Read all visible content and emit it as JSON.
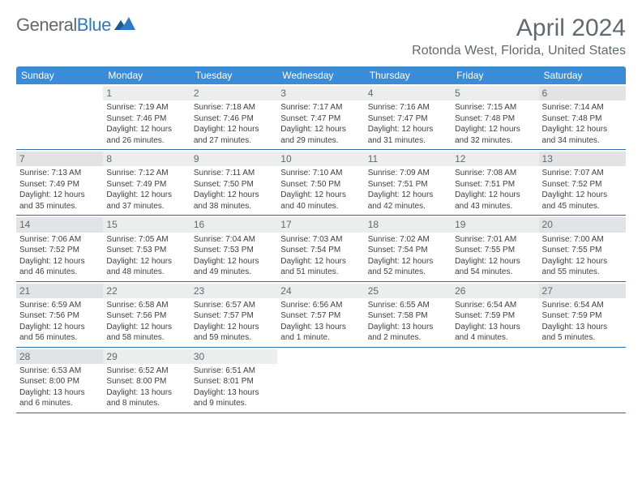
{
  "logo": {
    "word1": "General",
    "word2": "Blue"
  },
  "title": "April 2024",
  "location": "Rotonda West, Florida, United States",
  "colors": {
    "header_bg": "#3a8bd8",
    "header_text": "#ffffff",
    "divider": "#2f6fa8",
    "daynum_bg": "#eceded",
    "daynum_bg_alt": "#e2e3e4",
    "body_text": "#404040",
    "title_text": "#5f6a72",
    "logo_blue": "#2f7ac4"
  },
  "weekdays": [
    "Sunday",
    "Monday",
    "Tuesday",
    "Wednesday",
    "Thursday",
    "Friday",
    "Saturday"
  ],
  "weeks": [
    [
      null,
      {
        "n": "1",
        "sr": "Sunrise: 7:19 AM",
        "ss": "Sunset: 7:46 PM",
        "dl": "Daylight: 12 hours and 26 minutes."
      },
      {
        "n": "2",
        "sr": "Sunrise: 7:18 AM",
        "ss": "Sunset: 7:46 PM",
        "dl": "Daylight: 12 hours and 27 minutes."
      },
      {
        "n": "3",
        "sr": "Sunrise: 7:17 AM",
        "ss": "Sunset: 7:47 PM",
        "dl": "Daylight: 12 hours and 29 minutes."
      },
      {
        "n": "4",
        "sr": "Sunrise: 7:16 AM",
        "ss": "Sunset: 7:47 PM",
        "dl": "Daylight: 12 hours and 31 minutes."
      },
      {
        "n": "5",
        "sr": "Sunrise: 7:15 AM",
        "ss": "Sunset: 7:48 PM",
        "dl": "Daylight: 12 hours and 32 minutes."
      },
      {
        "n": "6",
        "sr": "Sunrise: 7:14 AM",
        "ss": "Sunset: 7:48 PM",
        "dl": "Daylight: 12 hours and 34 minutes."
      }
    ],
    [
      {
        "n": "7",
        "sr": "Sunrise: 7:13 AM",
        "ss": "Sunset: 7:49 PM",
        "dl": "Daylight: 12 hours and 35 minutes."
      },
      {
        "n": "8",
        "sr": "Sunrise: 7:12 AM",
        "ss": "Sunset: 7:49 PM",
        "dl": "Daylight: 12 hours and 37 minutes."
      },
      {
        "n": "9",
        "sr": "Sunrise: 7:11 AM",
        "ss": "Sunset: 7:50 PM",
        "dl": "Daylight: 12 hours and 38 minutes."
      },
      {
        "n": "10",
        "sr": "Sunrise: 7:10 AM",
        "ss": "Sunset: 7:50 PM",
        "dl": "Daylight: 12 hours and 40 minutes."
      },
      {
        "n": "11",
        "sr": "Sunrise: 7:09 AM",
        "ss": "Sunset: 7:51 PM",
        "dl": "Daylight: 12 hours and 42 minutes."
      },
      {
        "n": "12",
        "sr": "Sunrise: 7:08 AM",
        "ss": "Sunset: 7:51 PM",
        "dl": "Daylight: 12 hours and 43 minutes."
      },
      {
        "n": "13",
        "sr": "Sunrise: 7:07 AM",
        "ss": "Sunset: 7:52 PM",
        "dl": "Daylight: 12 hours and 45 minutes."
      }
    ],
    [
      {
        "n": "14",
        "sr": "Sunrise: 7:06 AM",
        "ss": "Sunset: 7:52 PM",
        "dl": "Daylight: 12 hours and 46 minutes."
      },
      {
        "n": "15",
        "sr": "Sunrise: 7:05 AM",
        "ss": "Sunset: 7:53 PM",
        "dl": "Daylight: 12 hours and 48 minutes."
      },
      {
        "n": "16",
        "sr": "Sunrise: 7:04 AM",
        "ss": "Sunset: 7:53 PM",
        "dl": "Daylight: 12 hours and 49 minutes."
      },
      {
        "n": "17",
        "sr": "Sunrise: 7:03 AM",
        "ss": "Sunset: 7:54 PM",
        "dl": "Daylight: 12 hours and 51 minutes."
      },
      {
        "n": "18",
        "sr": "Sunrise: 7:02 AM",
        "ss": "Sunset: 7:54 PM",
        "dl": "Daylight: 12 hours and 52 minutes."
      },
      {
        "n": "19",
        "sr": "Sunrise: 7:01 AM",
        "ss": "Sunset: 7:55 PM",
        "dl": "Daylight: 12 hours and 54 minutes."
      },
      {
        "n": "20",
        "sr": "Sunrise: 7:00 AM",
        "ss": "Sunset: 7:55 PM",
        "dl": "Daylight: 12 hours and 55 minutes."
      }
    ],
    [
      {
        "n": "21",
        "sr": "Sunrise: 6:59 AM",
        "ss": "Sunset: 7:56 PM",
        "dl": "Daylight: 12 hours and 56 minutes."
      },
      {
        "n": "22",
        "sr": "Sunrise: 6:58 AM",
        "ss": "Sunset: 7:56 PM",
        "dl": "Daylight: 12 hours and 58 minutes."
      },
      {
        "n": "23",
        "sr": "Sunrise: 6:57 AM",
        "ss": "Sunset: 7:57 PM",
        "dl": "Daylight: 12 hours and 59 minutes."
      },
      {
        "n": "24",
        "sr": "Sunrise: 6:56 AM",
        "ss": "Sunset: 7:57 PM",
        "dl": "Daylight: 13 hours and 1 minute."
      },
      {
        "n": "25",
        "sr": "Sunrise: 6:55 AM",
        "ss": "Sunset: 7:58 PM",
        "dl": "Daylight: 13 hours and 2 minutes."
      },
      {
        "n": "26",
        "sr": "Sunrise: 6:54 AM",
        "ss": "Sunset: 7:59 PM",
        "dl": "Daylight: 13 hours and 4 minutes."
      },
      {
        "n": "27",
        "sr": "Sunrise: 6:54 AM",
        "ss": "Sunset: 7:59 PM",
        "dl": "Daylight: 13 hours and 5 minutes."
      }
    ],
    [
      {
        "n": "28",
        "sr": "Sunrise: 6:53 AM",
        "ss": "Sunset: 8:00 PM",
        "dl": "Daylight: 13 hours and 6 minutes."
      },
      {
        "n": "29",
        "sr": "Sunrise: 6:52 AM",
        "ss": "Sunset: 8:00 PM",
        "dl": "Daylight: 13 hours and 8 minutes."
      },
      {
        "n": "30",
        "sr": "Sunrise: 6:51 AM",
        "ss": "Sunset: 8:01 PM",
        "dl": "Daylight: 13 hours and 9 minutes."
      },
      null,
      null,
      null,
      null
    ]
  ]
}
